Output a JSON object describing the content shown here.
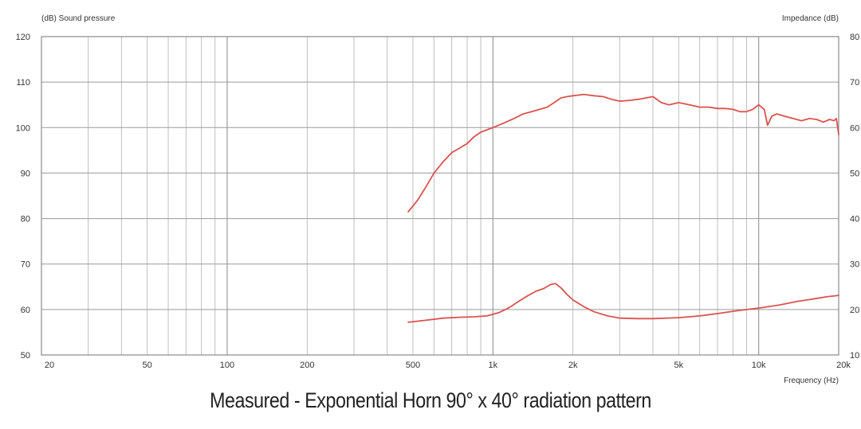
{
  "chart_data": {
    "type": "line",
    "title": "Measured - Exponential Horn 90° x 40° radiation pattern",
    "ylabel_left": "(dB)  Sound pressure",
    "ylabel_right": "Impedance  (dB)",
    "xlabel": "Frequency  (Hz)",
    "x_scale": "log",
    "xlim": [
      20,
      20000
    ],
    "ylim_left": [
      50,
      120
    ],
    "ylim_right": [
      10,
      80
    ],
    "grid": true,
    "x_tick_labels": [
      {
        "value": 20,
        "label": "20"
      },
      {
        "value": 50,
        "label": "50"
      },
      {
        "value": 100,
        "label": "100"
      },
      {
        "value": 200,
        "label": "200"
      },
      {
        "value": 500,
        "label": "500"
      },
      {
        "value": 1000,
        "label": "1k"
      },
      {
        "value": 2000,
        "label": "2k"
      },
      {
        "value": 5000,
        "label": "5k"
      },
      {
        "value": 10000,
        "label": "10k"
      },
      {
        "value": 20000,
        "label": "20k"
      }
    ],
    "y_left_ticks": [
      50,
      60,
      70,
      80,
      90,
      100,
      110,
      120
    ],
    "y_right_ticks": [
      "10",
      "20",
      "30",
      "40",
      "50",
      "60",
      "70",
      "80"
    ],
    "series": [
      {
        "color": "#d9534f",
        "x": [
          480,
          520,
          560,
          600,
          650,
          700,
          750,
          800,
          850,
          900,
          950,
          1000,
          1100,
          1200,
          1300,
          1400,
          1500,
          1600,
          1700,
          1800,
          1900,
          2000,
          2200,
          2400,
          2600,
          2800,
          3000,
          3300,
          3600,
          4000,
          4300,
          4600,
          5000,
          5500,
          6000,
          6500,
          7000,
          7500,
          8000,
          8500,
          9000,
          9500,
          10000,
          10500,
          10800,
          11200,
          11700,
          12500,
          13500,
          14500,
          15500,
          16500,
          17500,
          18500,
          19200,
          19600,
          20000
        ],
        "y": [
          81.5,
          84,
          87,
          90,
          92.5,
          94.5,
          95.5,
          96.5,
          98,
          99,
          99.5,
          100,
          101,
          102,
          103,
          103.5,
          104,
          104.5,
          105.5,
          106.5,
          106.8,
          107,
          107.3,
          107,
          106.8,
          106.2,
          105.8,
          106,
          106.3,
          106.8,
          105.5,
          105,
          105.5,
          105,
          104.5,
          104.5,
          104.2,
          104.2,
          104,
          103.5,
          103.5,
          104,
          105,
          104,
          100.5,
          102.5,
          103,
          102.5,
          102,
          101.5,
          102,
          101.8,
          101.2,
          101.8,
          101.5,
          102,
          98.5
        ]
      },
      {
        "color": "#d9534f",
        "x": [
          480,
          550,
          650,
          750,
          850,
          950,
          1050,
          1150,
          1250,
          1350,
          1450,
          1550,
          1650,
          1720,
          1800,
          1900,
          2000,
          2200,
          2400,
          2700,
          3000,
          3500,
          4000,
          5000,
          6000,
          7000,
          8000,
          9000,
          10000,
          12000,
          14000,
          16000,
          18000,
          20000
        ],
        "y": [
          57.2,
          57.6,
          58.1,
          58.3,
          58.4,
          58.6,
          59.3,
          60.4,
          61.8,
          63.0,
          64.0,
          64.6,
          65.5,
          65.7,
          64.8,
          63.3,
          62.1,
          60.6,
          59.5,
          58.6,
          58.1,
          58.0,
          58.0,
          58.2,
          58.6,
          59.1,
          59.6,
          60.0,
          60.3,
          61.0,
          61.8,
          62.3,
          62.8,
          63.1
        ]
      }
    ]
  }
}
